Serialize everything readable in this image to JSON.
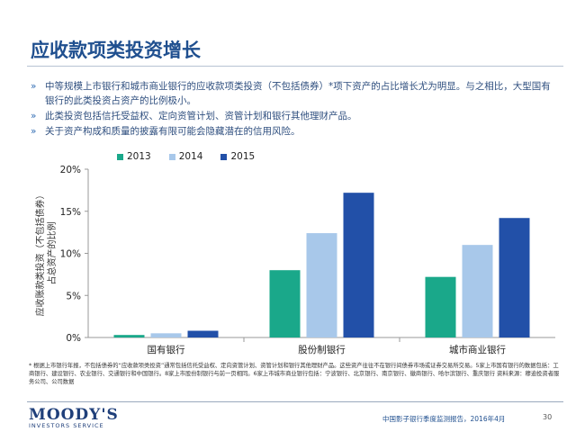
{
  "title": "应收款项类投资增长",
  "bullets": [
    "中等规模上市银行和城市商业银行的应收款项类投资（不包括债券）*项下资产的占比增长尤为明显。与之相比，大型国有银行的此类投资占资产的比例极小。",
    "此类投资包括信托受益权、定向资管计划、资管计划和银行其他理财产品。",
    "关于资产构成和质量的披露有限可能会隐藏潜在的信用风险。"
  ],
  "bullet_marker": "»",
  "chart_data": {
    "type": "bar",
    "categories": [
      "国有银行",
      "股份制银行",
      "城市商业银行"
    ],
    "series": [
      {
        "name": "2013",
        "color": "#1aa88a",
        "values": [
          0.3,
          8.0,
          7.2
        ]
      },
      {
        "name": "2014",
        "color": "#a8c8ea",
        "values": [
          0.5,
          12.4,
          11.0
        ]
      },
      {
        "name": "2015",
        "color": "#2250a8",
        "values": [
          0.8,
          17.2,
          14.2
        ]
      }
    ],
    "ylabel": "应收账款类投资（不包括债券）占总资产的比例",
    "ylim": [
      0,
      20
    ],
    "yticks": [
      0,
      5,
      10,
      15,
      20
    ],
    "ytick_labels": [
      "0%",
      "5%",
      "10%",
      "15%",
      "20%"
    ],
    "legend_position": "top",
    "grid": false
  },
  "footnote": "* 根据上市银行年报，不包括债券的“应收款项类投资”通常包括信托受益权、定向资管计划、资管计划和银行其他理财产品。这些资产往往不在银行间债券市场或证券交易所交易。5家上市国有银行的数据包括：工商银行、建设银行、农业银行、交通银行和中国银行。8家上市股份制银行与前一页相同。6家上市城市商业银行包括：宁波银行、北京银行、南京银行、徽商银行、哈尔滨银行、重庆银行 资料来源：穆迪投资者服务公司、公司数据",
  "logo": {
    "name": "MOODY'S",
    "sub": "INVESTORS SERVICE"
  },
  "report_title": "中国影子银行季度监测报告，2016年4月",
  "page_number": "30"
}
